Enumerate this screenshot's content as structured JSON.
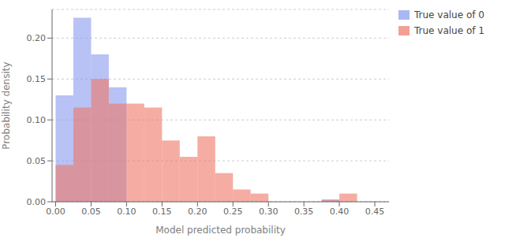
{
  "chart_data": {
    "type": "histogram",
    "xlabel": "Model predicted probability",
    "ylabel": "Probability density",
    "bins": [
      0.0,
      0.025,
      0.05,
      0.075,
      0.1,
      0.125,
      0.15,
      0.175,
      0.2,
      0.225,
      0.25,
      0.275,
      0.3,
      0.325,
      0.35,
      0.375,
      0.4,
      0.425,
      0.45
    ],
    "series": [
      {
        "name": "True value of 0",
        "color": "#8899ee",
        "values": [
          0.13,
          0.225,
          0.18,
          0.14,
          0.0,
          0.0,
          0.0,
          0.0,
          0.0,
          0.0,
          0.0,
          0.0,
          0.0,
          0.0,
          0.0,
          0.003,
          0.0,
          0.0
        ]
      },
      {
        "name": "True value of 1",
        "color": "#ee7766",
        "values": [
          0.045,
          0.115,
          0.15,
          0.12,
          0.12,
          0.115,
          0.075,
          0.055,
          0.08,
          0.035,
          0.015,
          0.01,
          0.0,
          0.0,
          0.0,
          0.002,
          0.01,
          0.0
        ]
      }
    ],
    "xlim": [
      -0.005,
      0.47
    ],
    "ylim": [
      0,
      0.235
    ],
    "xticks": [
      {
        "value": 0,
        "label": "0.00"
      },
      0.05,
      {
        "value": 0.1,
        "label": "0.10"
      },
      0.15,
      {
        "value": 0.2,
        "label": "0.20"
      },
      0.25,
      {
        "value": 0.3,
        "label": "0.30"
      },
      0.35,
      {
        "value": 0.4,
        "label": "0.40"
      },
      0.45
    ],
    "yticks": [
      {
        "value": 0,
        "label": "0.00"
      },
      0.05,
      {
        "value": 0.1,
        "label": "0.10"
      },
      0.15,
      {
        "value": 0.2,
        "label": "0.20"
      }
    ],
    "grid": true,
    "legend": "right"
  }
}
